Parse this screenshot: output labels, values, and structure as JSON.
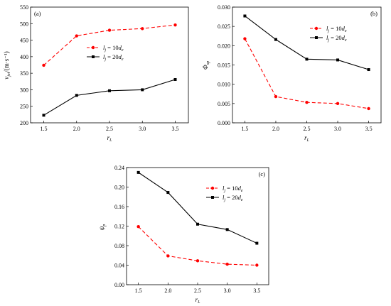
{
  "chart_data": [
    {
      "type": "line",
      "panel_label": "(a)",
      "x": [
        1.5,
        2.0,
        2.5,
        3.0,
        3.5
      ],
      "xticks": [
        "1.5",
        "2.0",
        "2.5",
        "3.0",
        "3.5"
      ],
      "yticks": [
        "200",
        "250",
        "300",
        "350",
        "400",
        "450",
        "500",
        "550"
      ],
      "xlim": [
        1.3,
        3.7
      ],
      "ylim": [
        200,
        550
      ],
      "xlabel": {
        "main": "r",
        "sub": "L"
      },
      "ylabel": {
        "main": "v",
        "sub": "jet",
        "unit": "/(m·s⁻¹)"
      },
      "legend_position": "middle-left",
      "series": [
        {
          "name": "l_j = 10d_e",
          "color": "#ff0000",
          "dash": true,
          "marker": "circle",
          "legend": {
            "l": "l",
            "lsub": "j",
            "mid": " = 10",
            "d": "d",
            "dsub": "e"
          },
          "values": [
            374,
            463,
            480,
            485,
            496
          ]
        },
        {
          "name": "l_j = 20d_e",
          "color": "#000000",
          "dash": false,
          "marker": "square",
          "legend": {
            "l": "l",
            "lsub": "j",
            "mid": " = 20",
            "d": "d",
            "dsub": "e"
          },
          "values": [
            223,
            283,
            297,
            300,
            331
          ]
        }
      ]
    },
    {
      "type": "line",
      "panel_label": "(b)",
      "x": [
        1.5,
        2.0,
        2.5,
        3.0,
        3.5
      ],
      "xticks": [
        "1.5",
        "2.0",
        "2.5",
        "3.0",
        "3.5"
      ],
      "yticks": [
        "0.000",
        "0.005",
        "0.010",
        "0.015",
        "0.020",
        "0.025",
        "0.030"
      ],
      "xlim": [
        1.3,
        3.7
      ],
      "ylim": [
        0,
        0.03
      ],
      "xlabel": {
        "main": "r",
        "sub": "L"
      },
      "ylabel": {
        "main": "Φ",
        "sub": "sp",
        "unit": ""
      },
      "legend_position": "top-right",
      "series": [
        {
          "name": "l_j = 10d_e",
          "color": "#ff0000",
          "dash": true,
          "marker": "circle",
          "legend": {
            "l": "l",
            "lsub": "j",
            "mid": " = 10",
            "d": "d",
            "dsub": "e"
          },
          "values": [
            0.0218,
            0.0068,
            0.0053,
            0.005,
            0.0037
          ]
        },
        {
          "name": "l_j = 20d_e",
          "color": "#000000",
          "dash": false,
          "marker": "square",
          "legend": {
            "l": "l",
            "lsub": "j",
            "mid": " = 20",
            "d": "d",
            "dsub": "e"
          },
          "values": [
            0.0277,
            0.0216,
            0.0165,
            0.0163,
            0.0138
          ]
        }
      ]
    },
    {
      "type": "line",
      "panel_label": "(c)",
      "x": [
        1.5,
        2.0,
        2.5,
        3.0,
        3.5
      ],
      "xticks": [
        "1.5",
        "2.0",
        "2.5",
        "3.0",
        "3.5"
      ],
      "yticks": [
        "0.00",
        "0.04",
        "0.08",
        "0.12",
        "0.16",
        "0.20",
        "0.24"
      ],
      "xlim": [
        1.3,
        3.7
      ],
      "ylim": [
        0,
        0.24
      ],
      "xlabel": {
        "main": "r",
        "sub": "L"
      },
      "ylabel": {
        "main": "ψ",
        "sub": "p",
        "unit": ""
      },
      "legend_position": "top-right",
      "series": [
        {
          "name": "l_j = 10d_e",
          "color": "#ff0000",
          "dash": true,
          "marker": "circle",
          "legend": {
            "l": "l",
            "lsub": "j",
            "mid": " = 10",
            "d": "d",
            "dsub": "e"
          },
          "values": [
            0.119,
            0.059,
            0.049,
            0.042,
            0.04
          ]
        },
        {
          "name": "l_j = 20d_e",
          "color": "#000000",
          "dash": false,
          "marker": "square",
          "legend": {
            "l": "l",
            "lsub": "j",
            "mid": " = 20",
            "d": "d",
            "dsub": "e"
          },
          "values": [
            0.23,
            0.189,
            0.124,
            0.113,
            0.085
          ]
        }
      ]
    }
  ]
}
